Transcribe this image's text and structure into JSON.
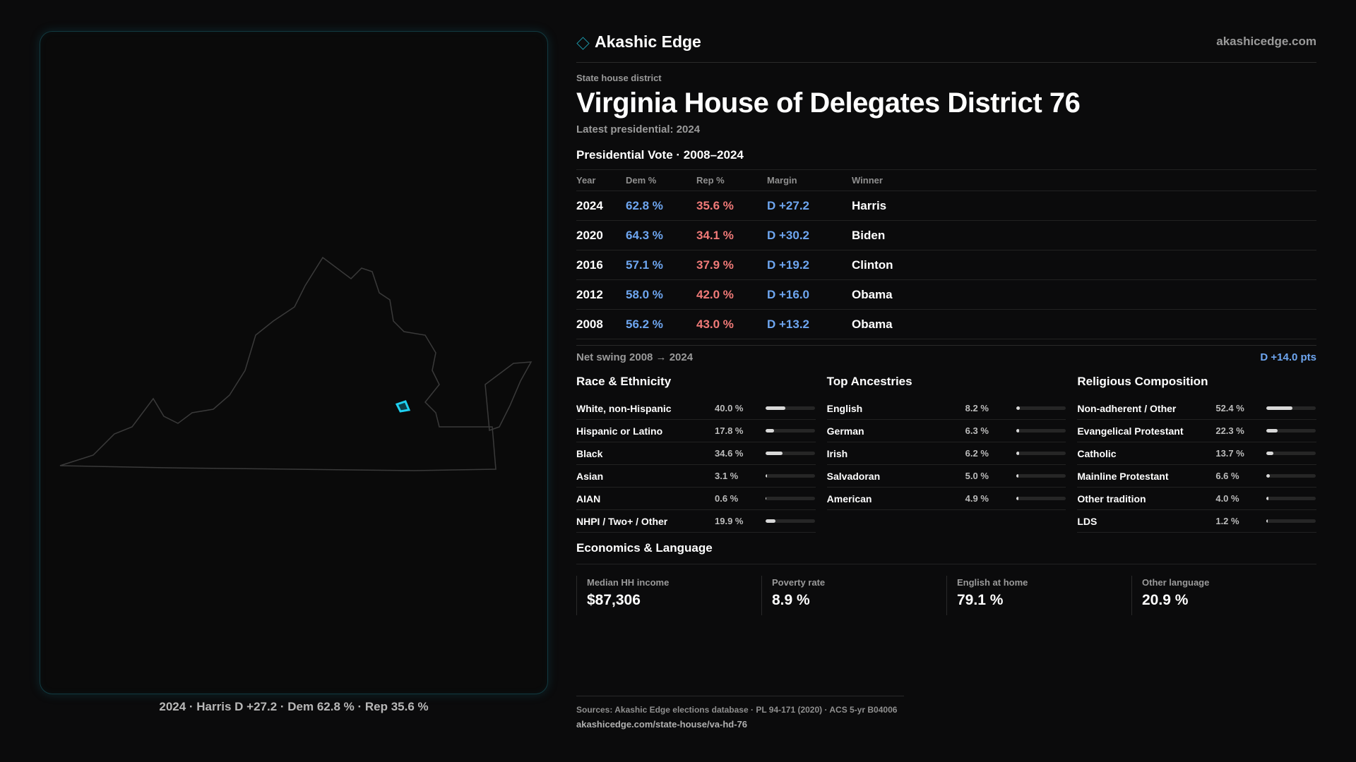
{
  "brand": {
    "name": "Akashic Edge",
    "url": "akashicedge.com"
  },
  "district": {
    "kicker": "State house district",
    "title": "Virginia House of Delegates District 76",
    "latest": "Latest presidential: 2024"
  },
  "map": {
    "caption": "2024 · Harris D +27.2 · Dem 62.8 % · Rep 35.6 %",
    "state": "Virginia",
    "highlight_color": "#1fd0f0"
  },
  "presidential": {
    "title": "Presidential Vote · 2008–2024",
    "headers": [
      "Year",
      "Dem %",
      "Rep %",
      "Margin",
      "Winner"
    ],
    "rows": [
      {
        "year": "2024",
        "dem": "62.8 %",
        "rep": "35.6 %",
        "margin": "D +27.2",
        "winner": "Harris"
      },
      {
        "year": "2020",
        "dem": "64.3 %",
        "rep": "34.1 %",
        "margin": "D +30.2",
        "winner": "Biden"
      },
      {
        "year": "2016",
        "dem": "57.1 %",
        "rep": "37.9 %",
        "margin": "D +19.2",
        "winner": "Clinton"
      },
      {
        "year": "2012",
        "dem": "58.0 %",
        "rep": "42.0 %",
        "margin": "D +16.0",
        "winner": "Obama"
      },
      {
        "year": "2008",
        "dem": "56.2 %",
        "rep": "43.0 %",
        "margin": "D +13.2",
        "winner": "Obama"
      }
    ],
    "swing_label": "Net swing 2008 → 2024",
    "swing_value": "D +14.0 pts"
  },
  "demographics": [
    {
      "title": "Race & Ethnicity",
      "rows": [
        {
          "label": "White, non-Hispanic",
          "value": "40.0 %",
          "pct": 40.0
        },
        {
          "label": "Hispanic or Latino",
          "value": "17.8 %",
          "pct": 17.8
        },
        {
          "label": "Black",
          "value": "34.6 %",
          "pct": 34.6
        },
        {
          "label": "Asian",
          "value": "3.1 %",
          "pct": 3.1
        },
        {
          "label": "AIAN",
          "value": "0.6 %",
          "pct": 0.6
        },
        {
          "label": "NHPI / Two+ / Other",
          "value": "19.9 %",
          "pct": 19.9
        }
      ]
    },
    {
      "title": "Top Ancestries",
      "rows": [
        {
          "label": "English",
          "value": "8.2 %",
          "pct": 8.2
        },
        {
          "label": "German",
          "value": "6.3 %",
          "pct": 6.3
        },
        {
          "label": "Irish",
          "value": "6.2 %",
          "pct": 6.2
        },
        {
          "label": "Salvadoran",
          "value": "5.0 %",
          "pct": 5.0
        },
        {
          "label": "American",
          "value": "4.9 %",
          "pct": 4.9
        }
      ]
    },
    {
      "title": "Religious Composition",
      "rows": [
        {
          "label": "Non-adherent / Other",
          "value": "52.4 %",
          "pct": 52.4
        },
        {
          "label": "Evangelical Protestant",
          "value": "22.3 %",
          "pct": 22.3
        },
        {
          "label": "Catholic",
          "value": "13.7 %",
          "pct": 13.7
        },
        {
          "label": "Mainline Protestant",
          "value": "6.6 %",
          "pct": 6.6
        },
        {
          "label": "Other tradition",
          "value": "4.0 %",
          "pct": 4.0
        },
        {
          "label": "LDS",
          "value": "1.2 %",
          "pct": 1.2
        }
      ]
    }
  ],
  "economics": {
    "title": "Economics & Language",
    "cards": [
      {
        "label": "Median HH income",
        "value": "$87,306"
      },
      {
        "label": "Poverty rate",
        "value": "8.9 %"
      },
      {
        "label": "English at home",
        "value": "79.1 %"
      },
      {
        "label": "Other language",
        "value": "20.9 %"
      }
    ]
  },
  "footer": {
    "sources": "Sources: Akashic Edge elections database · PL 94-171 (2020) · ACS 5-yr B04006",
    "url": "akashicedge.com/state-house/va-hd-76"
  }
}
